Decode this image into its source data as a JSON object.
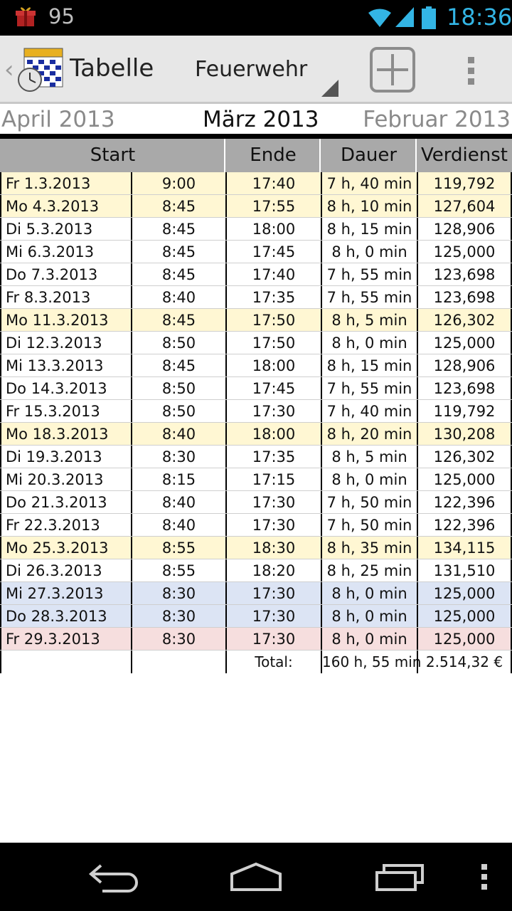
{
  "status_bar": {
    "notification_count": "95",
    "time": "18:36",
    "icons": [
      "gift-icon",
      "wifi-icon",
      "signal-icon",
      "battery-icon"
    ]
  },
  "action_bar": {
    "title": "Tabelle",
    "spinner_value": "Feuerwehr",
    "icons": [
      "calendar-clock-icon",
      "add-icon",
      "overflow-menu-icon"
    ]
  },
  "month_nav": {
    "previous": "April 2013",
    "current": "März 2013",
    "next": "Februar 2013"
  },
  "table": {
    "columns": [
      "Start",
      "Ende",
      "Dauer",
      "Verdienst"
    ],
    "row_colors": {
      "monday": "#fff7d3",
      "white": "#ffffff",
      "blue": "#dce4f4",
      "pink": "#f6dede"
    },
    "rows": [
      {
        "date": "Fr 1.3.2013",
        "start": "9:00",
        "end": "17:40",
        "duration": "7 h, 40 min",
        "earnings": "119,792",
        "color": "monday"
      },
      {
        "date": "Mo 4.3.2013",
        "start": "8:45",
        "end": "17:55",
        "duration": "8 h, 10 min",
        "earnings": "127,604",
        "color": "monday"
      },
      {
        "date": "Di 5.3.2013",
        "start": "8:45",
        "end": "18:00",
        "duration": "8 h, 15 min",
        "earnings": "128,906",
        "color": "white"
      },
      {
        "date": "Mi 6.3.2013",
        "start": "8:45",
        "end": "17:45",
        "duration": "8 h, 0 min",
        "earnings": "125,000",
        "color": "white"
      },
      {
        "date": "Do 7.3.2013",
        "start": "8:45",
        "end": "17:40",
        "duration": "7 h, 55 min",
        "earnings": "123,698",
        "color": "white"
      },
      {
        "date": "Fr 8.3.2013",
        "start": "8:40",
        "end": "17:35",
        "duration": "7 h, 55 min",
        "earnings": "123,698",
        "color": "white"
      },
      {
        "date": "Mo 11.3.2013",
        "start": "8:45",
        "end": "17:50",
        "duration": "8 h, 5 min",
        "earnings": "126,302",
        "color": "monday"
      },
      {
        "date": "Di 12.3.2013",
        "start": "8:50",
        "end": "17:50",
        "duration": "8 h, 0 min",
        "earnings": "125,000",
        "color": "white"
      },
      {
        "date": "Mi 13.3.2013",
        "start": "8:45",
        "end": "18:00",
        "duration": "8 h, 15 min",
        "earnings": "128,906",
        "color": "white"
      },
      {
        "date": "Do 14.3.2013",
        "start": "8:50",
        "end": "17:45",
        "duration": "7 h, 55 min",
        "earnings": "123,698",
        "color": "white"
      },
      {
        "date": "Fr 15.3.2013",
        "start": "8:50",
        "end": "17:30",
        "duration": "7 h, 40 min",
        "earnings": "119,792",
        "color": "white"
      },
      {
        "date": "Mo 18.3.2013",
        "start": "8:40",
        "end": "18:00",
        "duration": "8 h, 20 min",
        "earnings": "130,208",
        "color": "monday"
      },
      {
        "date": "Di 19.3.2013",
        "start": "8:30",
        "end": "17:35",
        "duration": "8 h, 5 min",
        "earnings": "126,302",
        "color": "white"
      },
      {
        "date": "Mi 20.3.2013",
        "start": "8:15",
        "end": "17:15",
        "duration": "8 h, 0 min",
        "earnings": "125,000",
        "color": "white"
      },
      {
        "date": "Do 21.3.2013",
        "start": "8:40",
        "end": "17:30",
        "duration": "7 h, 50 min",
        "earnings": "122,396",
        "color": "white"
      },
      {
        "date": "Fr 22.3.2013",
        "start": "8:40",
        "end": "17:30",
        "duration": "7 h, 50 min",
        "earnings": "122,396",
        "color": "white"
      },
      {
        "date": "Mo 25.3.2013",
        "start": "8:55",
        "end": "18:30",
        "duration": "8 h, 35 min",
        "earnings": "134,115",
        "color": "monday"
      },
      {
        "date": "Di 26.3.2013",
        "start": "8:55",
        "end": "18:20",
        "duration": "8 h, 25 min",
        "earnings": "131,510",
        "color": "white"
      },
      {
        "date": "Mi 27.3.2013",
        "start": "8:30",
        "end": "17:30",
        "duration": "8 h, 0 min",
        "earnings": "125,000",
        "color": "blue"
      },
      {
        "date": "Do 28.3.2013",
        "start": "8:30",
        "end": "17:30",
        "duration": "8 h, 0 min",
        "earnings": "125,000",
        "color": "blue"
      },
      {
        "date": "Fr 29.3.2013",
        "start": "8:30",
        "end": "17:30",
        "duration": "8 h, 0 min",
        "earnings": "125,000",
        "color": "pink"
      }
    ],
    "total": {
      "label": "Total:",
      "duration": "160 h, 55 min",
      "earnings": "2.514,32 €"
    }
  },
  "nav_bar": {
    "icons": [
      "back-icon",
      "home-icon",
      "recent-apps-icon",
      "menu-icon"
    ]
  }
}
